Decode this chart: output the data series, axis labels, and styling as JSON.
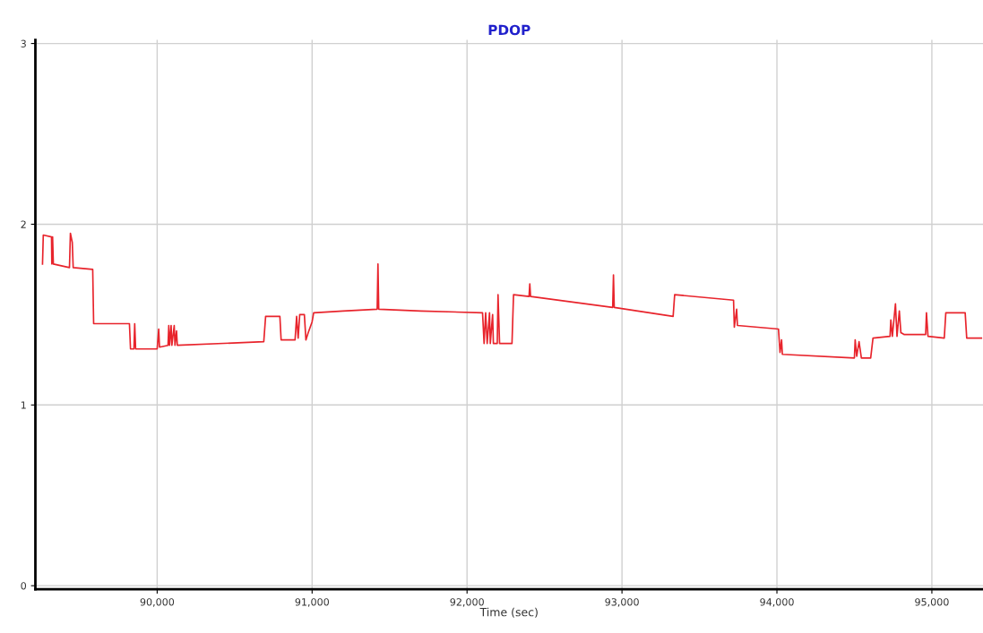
{
  "chart_data": {
    "type": "line",
    "title": "PDOP",
    "xlabel": "Time (sec)",
    "x": [
      89260,
      89265,
      89318,
      89320,
      89325,
      89330,
      89434,
      89440,
      89452,
      89458,
      89584,
      89590,
      89821,
      89828,
      89850,
      89855,
      89861,
      90000,
      90010,
      90015,
      90070,
      90075,
      90080,
      90090,
      90095,
      90110,
      90115,
      90125,
      90130,
      90688,
      90700,
      90792,
      90800,
      90890,
      90900,
      90910,
      90920,
      90950,
      90960,
      90975,
      91000,
      91010,
      91200,
      91420,
      91425,
      91430,
      91700,
      92100,
      92110,
      92120,
      92130,
      92145,
      92150,
      92165,
      92170,
      92195,
      92200,
      92210,
      92290,
      92300,
      92400,
      92405,
      92410,
      92940,
      92945,
      92950,
      93330,
      93340,
      93720,
      93725,
      93740,
      93745,
      94010,
      94020,
      94030,
      94035,
      94500,
      94505,
      94515,
      94530,
      94545,
      94605,
      94620,
      94730,
      94735,
      94745,
      94765,
      94775,
      94790,
      94800,
      94820,
      94960,
      94965,
      94975,
      95080,
      95090,
      95215,
      95225,
      95320
    ],
    "series": [
      {
        "color": "#e8242c",
        "values": [
          1.78,
          1.94,
          1.93,
          1.78,
          1.93,
          1.78,
          1.76,
          1.95,
          1.9,
          1.76,
          1.75,
          1.45,
          1.45,
          1.31,
          1.31,
          1.45,
          1.31,
          1.31,
          1.42,
          1.32,
          1.33,
          1.44,
          1.33,
          1.44,
          1.33,
          1.44,
          1.33,
          1.41,
          1.33,
          1.35,
          1.49,
          1.49,
          1.36,
          1.36,
          1.49,
          1.37,
          1.5,
          1.5,
          1.36,
          1.4,
          1.46,
          1.51,
          1.52,
          1.53,
          1.78,
          1.53,
          1.52,
          1.51,
          1.34,
          1.51,
          1.34,
          1.51,
          1.34,
          1.5,
          1.34,
          1.34,
          1.61,
          1.34,
          1.34,
          1.61,
          1.6,
          1.67,
          1.6,
          1.54,
          1.72,
          1.54,
          1.49,
          1.61,
          1.58,
          1.43,
          1.53,
          1.44,
          1.42,
          1.29,
          1.36,
          1.28,
          1.26,
          1.36,
          1.27,
          1.35,
          1.26,
          1.26,
          1.37,
          1.38,
          1.47,
          1.38,
          1.56,
          1.38,
          1.52,
          1.4,
          1.39,
          1.39,
          1.51,
          1.38,
          1.37,
          1.51,
          1.51,
          1.37,
          1.37
        ]
      }
    ],
    "xlim": [
      89214,
      95330
    ],
    "ylim": [
      -0.02,
      3.02
    ],
    "xticks": [
      {
        "value": 90000,
        "label": "90,000"
      },
      {
        "value": 91000,
        "label": "91,000"
      },
      {
        "value": 92000,
        "label": "92,000"
      },
      {
        "value": 93000,
        "label": "93,000"
      },
      {
        "value": 94000,
        "label": "94,000"
      },
      {
        "value": 95000,
        "label": "95,000"
      }
    ],
    "yticks": [
      0,
      1,
      2,
      3
    ],
    "grid": true,
    "legend": false,
    "marker": "none",
    "line_style": "solid"
  }
}
